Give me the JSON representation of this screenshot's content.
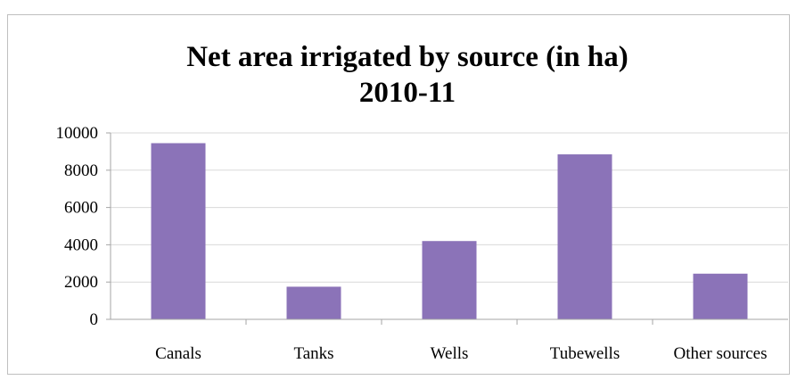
{
  "chart_data": {
    "type": "bar",
    "title": "Net area irrigated by source (in ha)",
    "subtitle": "2010-11",
    "categories": [
      "Canals",
      "Tanks",
      "Wells",
      "Tubewells",
      "Other sources"
    ],
    "values": [
      9450,
      1750,
      4200,
      8850,
      2450
    ],
    "y_ticks": [
      "0",
      "2000",
      "4000",
      "6000",
      "8000",
      "10000"
    ],
    "ylim": [
      0,
      10000
    ],
    "grid": true,
    "legend": "none",
    "bar_color": "#8b73b8"
  }
}
